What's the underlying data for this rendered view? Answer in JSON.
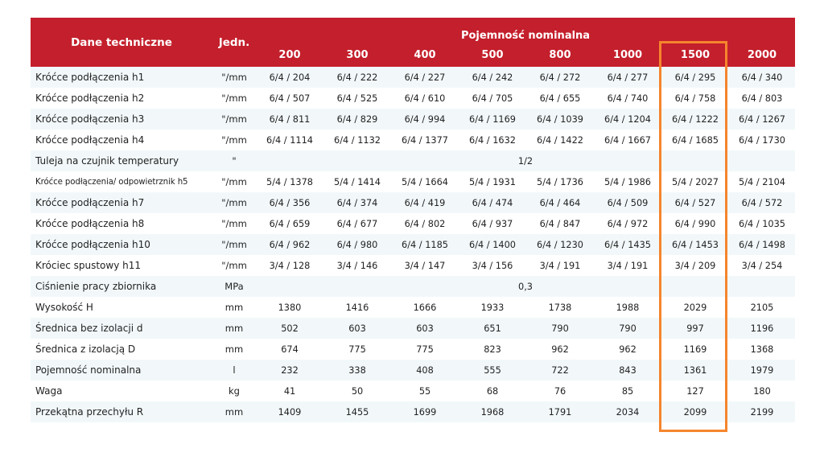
{
  "table": {
    "header": {
      "col_name": "Dane techniczne",
      "col_unit": "Jedn.",
      "group": "Pojemność nominalna",
      "capacities": [
        "200",
        "300",
        "400",
        "500",
        "800",
        "1000",
        "1500",
        "2000"
      ]
    },
    "highlight_column": "1500",
    "highlight_color": "#f5852d",
    "header_color": "#c41f2c",
    "rows": [
      {
        "label": "Króćce podłączenia h1",
        "unit": "\"/mm",
        "values": [
          "6/4 / 204",
          "6/4 / 222",
          "6/4 / 227",
          "6/4 / 242",
          "6/4 / 272",
          "6/4 / 277",
          "6/4 / 295",
          "6/4 / 340"
        ]
      },
      {
        "label": "Króćce podłączenia h2",
        "unit": "\"/mm",
        "values": [
          "6/4 / 507",
          "6/4 / 525",
          "6/4 / 610",
          "6/4 / 705",
          "6/4 / 655",
          "6/4 / 740",
          "6/4 / 758",
          "6/4 / 803"
        ]
      },
      {
        "label": "Króćce podłączenia h3",
        "unit": "\"/mm",
        "values": [
          "6/4 / 811",
          "6/4 / 829",
          "6/4 / 994",
          "6/4 / 1169",
          "6/4 / 1039",
          "6/4 / 1204",
          "6/4 / 1222",
          "6/4 / 1267"
        ]
      },
      {
        "label": "Króćce podłączenia h4",
        "unit": "\"/mm",
        "values": [
          "6/4 / 1114",
          "6/4 / 1132",
          "6/4 / 1377",
          "6/4 / 1632",
          "6/4 / 1422",
          "6/4 / 1667",
          "6/4 / 1685",
          "6/4 / 1730"
        ]
      },
      {
        "label": "Tuleja na czujnik temperatury",
        "unit": "\"",
        "merged": "1/2"
      },
      {
        "label": "Króćce podłączenia/ odpowietrznik h5",
        "unit": "\"/mm",
        "small": true,
        "values": [
          "5/4 / 1378",
          "5/4 / 1414",
          "5/4 / 1664",
          "5/4 / 1931",
          "5/4 / 1736",
          "5/4 / 1986",
          "5/4 / 2027",
          "5/4 / 2104"
        ]
      },
      {
        "label": "Króćce podłączenia h7",
        "unit": "\"/mm",
        "values": [
          "6/4 / 356",
          "6/4 / 374",
          "6/4 / 419",
          "6/4 / 474",
          "6/4 / 464",
          "6/4 / 509",
          "6/4 / 527",
          "6/4 / 572"
        ]
      },
      {
        "label": "Króćce podłączenia h8",
        "unit": "\"/mm",
        "values": [
          "6/4 / 659",
          "6/4 / 677",
          "6/4 / 802",
          "6/4 / 937",
          "6/4 / 847",
          "6/4 / 972",
          "6/4 / 990",
          "6/4 / 1035"
        ]
      },
      {
        "label": "Króćce podłączenia h10",
        "unit": "\"/mm",
        "values": [
          "6/4 / 962",
          "6/4 / 980",
          "6/4 / 1185",
          "6/4 / 1400",
          "6/4 / 1230",
          "6/4 / 1435",
          "6/4 / 1453",
          "6/4 / 1498"
        ]
      },
      {
        "label": "Króciec spustowy h11",
        "unit": "\"/mm",
        "values": [
          "3/4 / 128",
          "3/4 / 146",
          "3/4 / 147",
          "3/4 / 156",
          "3/4 / 191",
          "3/4 / 191",
          "3/4 / 209",
          "3/4 / 254"
        ]
      },
      {
        "label": "Ciśnienie pracy zbiornika",
        "unit": "MPa",
        "merged": "0,3"
      },
      {
        "label": "Wysokość H",
        "unit": "mm",
        "values": [
          "1380",
          "1416",
          "1666",
          "1933",
          "1738",
          "1988",
          "2029",
          "2105"
        ]
      },
      {
        "label": "Średnica bez izolacji d",
        "unit": "mm",
        "values": [
          "502",
          "603",
          "603",
          "651",
          "790",
          "790",
          "997",
          "1196"
        ]
      },
      {
        "label": "Średnica z izolacją D",
        "unit": "mm",
        "values": [
          "674",
          "775",
          "775",
          "823",
          "962",
          "962",
          "1169",
          "1368"
        ]
      },
      {
        "label": "Pojemność nominalna",
        "unit": "l",
        "values": [
          "232",
          "338",
          "408",
          "555",
          "722",
          "843",
          "1361",
          "1979"
        ]
      },
      {
        "label": "Waga",
        "unit": "kg",
        "values": [
          "41",
          "50",
          "55",
          "68",
          "76",
          "85",
          "127",
          "180"
        ]
      },
      {
        "label": "Przekątna przechyłu R",
        "unit": "mm",
        "values": [
          "1409",
          "1455",
          "1699",
          "1968",
          "1791",
          "2034",
          "2099",
          "2199"
        ]
      }
    ]
  }
}
